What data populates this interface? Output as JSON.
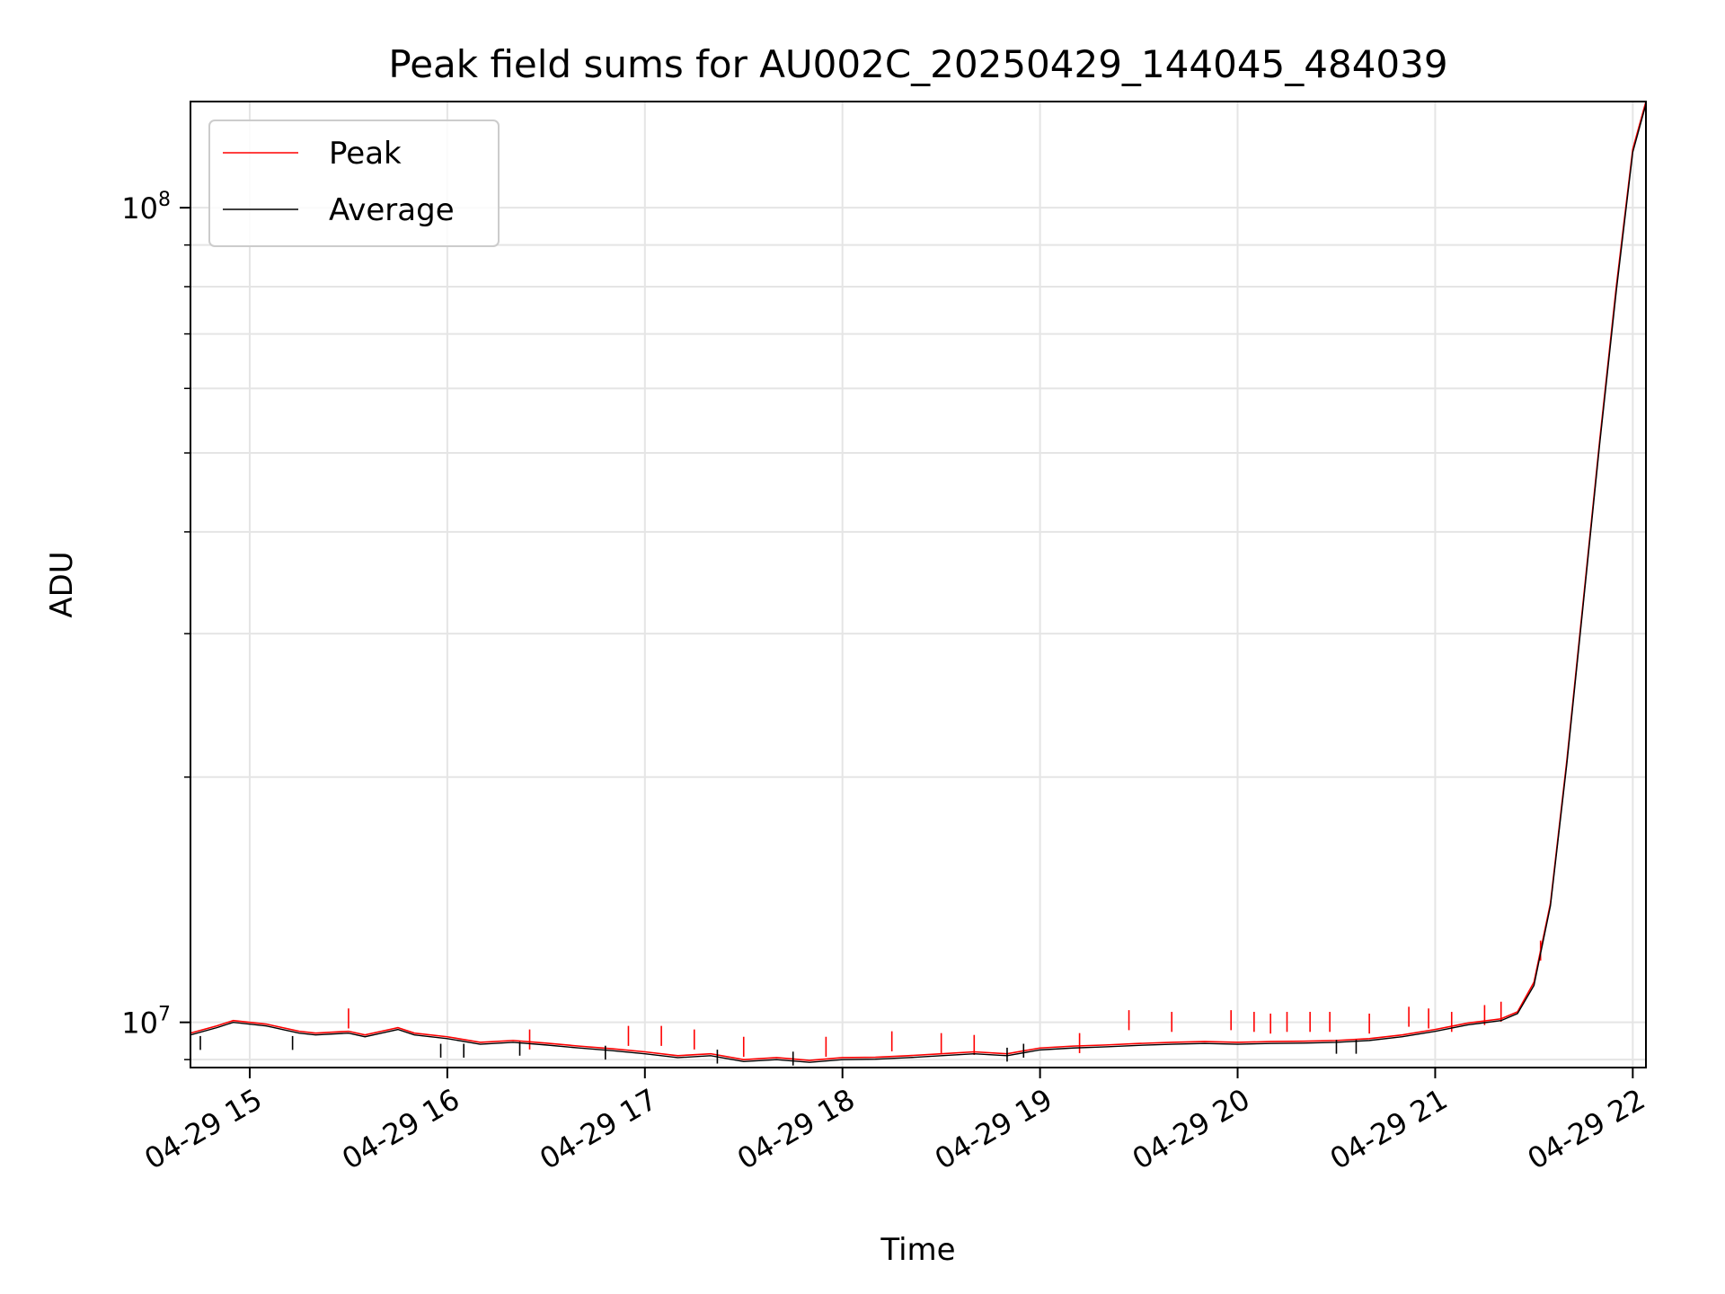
{
  "chart_data": {
    "type": "line",
    "title": "Peak field sums for AU002C_20250429_144045_484039",
    "xlabel": "Time",
    "ylabel": "ADU",
    "x_axis_type": "datetime",
    "xlim": [
      "2025-04-29T14:42:00",
      "2025-04-29T22:04:00"
    ],
    "x_ticks": [
      {
        "value": "2025-04-29T15:00:00",
        "label": "04-29 15"
      },
      {
        "value": "2025-04-29T16:00:00",
        "label": "04-29 16"
      },
      {
        "value": "2025-04-29T17:00:00",
        "label": "04-29 17"
      },
      {
        "value": "2025-04-29T18:00:00",
        "label": "04-29 18"
      },
      {
        "value": "2025-04-29T19:00:00",
        "label": "04-29 19"
      },
      {
        "value": "2025-04-29T20:00:00",
        "label": "04-29 20"
      },
      {
        "value": "2025-04-29T21:00:00",
        "label": "04-29 21"
      },
      {
        "value": "2025-04-29T22:00:00",
        "label": "04-29 22"
      }
    ],
    "y_scale": "log",
    "ylim": [
      8800000,
      135000000
    ],
    "y_major_ticks": [
      {
        "value": 10000000,
        "base": "10",
        "exp": "7"
      },
      {
        "value": 100000000,
        "base": "10",
        "exp": "8"
      }
    ],
    "y_minor_ticks": [
      9000000,
      20000000,
      30000000,
      40000000,
      50000000,
      60000000,
      70000000,
      80000000,
      90000000
    ],
    "grid": true,
    "legend_position": "upper-left",
    "colors": {
      "peak": "#ff0000",
      "average": "#000000",
      "grid": "#e5e5e5"
    },
    "series": [
      {
        "name": "Peak",
        "color": "#ff0000",
        "points": [
          [
            "2025-04-29T14:42:00",
            9700000
          ],
          [
            "2025-04-29T14:50:00",
            9900000
          ],
          [
            "2025-04-29T14:55:00",
            10050000
          ],
          [
            "2025-04-29T15:00:00",
            10000000
          ],
          [
            "2025-04-29T15:05:00",
            9950000
          ],
          [
            "2025-04-29T15:10:00",
            9850000
          ],
          [
            "2025-04-29T15:15:00",
            9750000
          ],
          [
            "2025-04-29T15:20:00",
            9700000
          ],
          [
            "2025-04-29T15:30:00",
            9750000
          ],
          [
            "2025-04-29T15:35:00",
            9650000
          ],
          [
            "2025-04-29T15:40:00",
            9750000
          ],
          [
            "2025-04-29T15:45:00",
            9850000
          ],
          [
            "2025-04-29T15:50:00",
            9700000
          ],
          [
            "2025-04-29T16:00:00",
            9600000
          ],
          [
            "2025-04-29T16:10:00",
            9450000
          ],
          [
            "2025-04-29T16:20:00",
            9500000
          ],
          [
            "2025-04-29T16:30:00",
            9430000
          ],
          [
            "2025-04-29T16:40:00",
            9350000
          ],
          [
            "2025-04-29T16:50:00",
            9280000
          ],
          [
            "2025-04-29T17:00:00",
            9200000
          ],
          [
            "2025-04-29T17:10:00",
            9100000
          ],
          [
            "2025-04-29T17:20:00",
            9150000
          ],
          [
            "2025-04-29T17:30:00",
            9000000
          ],
          [
            "2025-04-29T17:40:00",
            9050000
          ],
          [
            "2025-04-29T17:50:00",
            8980000
          ],
          [
            "2025-04-29T18:00:00",
            9050000
          ],
          [
            "2025-04-29T18:10:00",
            9060000
          ],
          [
            "2025-04-29T18:20:00",
            9100000
          ],
          [
            "2025-04-29T18:30:00",
            9150000
          ],
          [
            "2025-04-29T18:40:00",
            9200000
          ],
          [
            "2025-04-29T18:50:00",
            9150000
          ],
          [
            "2025-04-29T19:00:00",
            9300000
          ],
          [
            "2025-04-29T19:10:00",
            9350000
          ],
          [
            "2025-04-29T19:20:00",
            9380000
          ],
          [
            "2025-04-29T19:30:00",
            9420000
          ],
          [
            "2025-04-29T19:40:00",
            9450000
          ],
          [
            "2025-04-29T19:50:00",
            9470000
          ],
          [
            "2025-04-29T20:00:00",
            9450000
          ],
          [
            "2025-04-29T20:10:00",
            9470000
          ],
          [
            "2025-04-29T20:20:00",
            9480000
          ],
          [
            "2025-04-29T20:30:00",
            9500000
          ],
          [
            "2025-04-29T20:40:00",
            9550000
          ],
          [
            "2025-04-29T20:50:00",
            9650000
          ],
          [
            "2025-04-29T21:00:00",
            9800000
          ],
          [
            "2025-04-29T21:10:00",
            9980000
          ],
          [
            "2025-04-29T21:20:00",
            10100000
          ],
          [
            "2025-04-29T21:25:00",
            10300000
          ],
          [
            "2025-04-29T21:30:00",
            11200000
          ],
          [
            "2025-04-29T21:35:00",
            14000000
          ],
          [
            "2025-04-29T21:40:00",
            21000000
          ],
          [
            "2025-04-29T21:45:00",
            33000000
          ],
          [
            "2025-04-29T21:50:00",
            52000000
          ],
          [
            "2025-04-29T21:55:00",
            80000000
          ],
          [
            "2025-04-29T22:00:00",
            118000000
          ],
          [
            "2025-04-29T22:04:00",
            135000000
          ]
        ]
      },
      {
        "name": "Average",
        "color": "#000000",
        "points": [
          [
            "2025-04-29T14:42:00",
            9650000
          ],
          [
            "2025-04-29T14:50:00",
            9850000
          ],
          [
            "2025-04-29T14:55:00",
            10000000
          ],
          [
            "2025-04-29T15:00:00",
            9950000
          ],
          [
            "2025-04-29T15:05:00",
            9900000
          ],
          [
            "2025-04-29T15:10:00",
            9800000
          ],
          [
            "2025-04-29T15:15:00",
            9700000
          ],
          [
            "2025-04-29T15:20:00",
            9650000
          ],
          [
            "2025-04-29T15:30:00",
            9700000
          ],
          [
            "2025-04-29T15:35:00",
            9600000
          ],
          [
            "2025-04-29T15:40:00",
            9700000
          ],
          [
            "2025-04-29T15:45:00",
            9800000
          ],
          [
            "2025-04-29T15:50:00",
            9650000
          ],
          [
            "2025-04-29T16:00:00",
            9550000
          ],
          [
            "2025-04-29T16:10:00",
            9400000
          ],
          [
            "2025-04-29T16:20:00",
            9450000
          ],
          [
            "2025-04-29T16:30:00",
            9380000
          ],
          [
            "2025-04-29T16:40:00",
            9300000
          ],
          [
            "2025-04-29T16:50:00",
            9230000
          ],
          [
            "2025-04-29T17:00:00",
            9150000
          ],
          [
            "2025-04-29T17:10:00",
            9050000
          ],
          [
            "2025-04-29T17:20:00",
            9100000
          ],
          [
            "2025-04-29T17:30:00",
            8950000
          ],
          [
            "2025-04-29T17:40:00",
            9000000
          ],
          [
            "2025-04-29T17:50:00",
            8930000
          ],
          [
            "2025-04-29T18:00:00",
            9000000
          ],
          [
            "2025-04-29T18:10:00",
            9010000
          ],
          [
            "2025-04-29T18:20:00",
            9050000
          ],
          [
            "2025-04-29T18:30:00",
            9100000
          ],
          [
            "2025-04-29T18:40:00",
            9150000
          ],
          [
            "2025-04-29T18:50:00",
            9100000
          ],
          [
            "2025-04-29T19:00:00",
            9250000
          ],
          [
            "2025-04-29T19:10:00",
            9300000
          ],
          [
            "2025-04-29T19:20:00",
            9330000
          ],
          [
            "2025-04-29T19:30:00",
            9370000
          ],
          [
            "2025-04-29T19:40:00",
            9400000
          ],
          [
            "2025-04-29T19:50:00",
            9420000
          ],
          [
            "2025-04-29T20:00:00",
            9400000
          ],
          [
            "2025-04-29T20:10:00",
            9420000
          ],
          [
            "2025-04-29T20:20:00",
            9430000
          ],
          [
            "2025-04-29T20:30:00",
            9450000
          ],
          [
            "2025-04-29T20:40:00",
            9500000
          ],
          [
            "2025-04-29T20:50:00",
            9600000
          ],
          [
            "2025-04-29T21:00:00",
            9750000
          ],
          [
            "2025-04-29T21:10:00",
            9930000
          ],
          [
            "2025-04-29T21:20:00",
            10050000
          ],
          [
            "2025-04-29T21:25:00",
            10250000
          ],
          [
            "2025-04-29T21:30:00",
            11100000
          ],
          [
            "2025-04-29T21:35:00",
            13900000
          ],
          [
            "2025-04-29T21:40:00",
            20800000
          ],
          [
            "2025-04-29T21:45:00",
            32700000
          ],
          [
            "2025-04-29T21:50:00",
            51500000
          ],
          [
            "2025-04-29T21:55:00",
            79000000
          ],
          [
            "2025-04-29T22:00:00",
            117000000
          ],
          [
            "2025-04-29T22:04:00",
            134000000
          ]
        ]
      }
    ],
    "peak_spikes": [
      [
        "2025-04-29T15:30:00",
        10400000
      ],
      [
        "2025-04-29T16:25:00",
        9800000
      ],
      [
        "2025-04-29T16:55:00",
        9900000
      ],
      [
        "2025-04-29T17:05:00",
        9900000
      ],
      [
        "2025-04-29T17:15:00",
        9800000
      ],
      [
        "2025-04-29T17:30:00",
        9600000
      ],
      [
        "2025-04-29T17:55:00",
        9600000
      ],
      [
        "2025-04-29T18:15:00",
        9750000
      ],
      [
        "2025-04-29T18:30:00",
        9700000
      ],
      [
        "2025-04-29T18:40:00",
        9650000
      ],
      [
        "2025-04-29T19:12:00",
        9700000
      ],
      [
        "2025-04-29T19:27:00",
        10350000
      ],
      [
        "2025-04-29T19:40:00",
        10300000
      ],
      [
        "2025-04-29T19:58:00",
        10350000
      ],
      [
        "2025-04-29T20:05:00",
        10300000
      ],
      [
        "2025-04-29T20:10:00",
        10250000
      ],
      [
        "2025-04-29T20:15:00",
        10300000
      ],
      [
        "2025-04-29T20:22:00",
        10300000
      ],
      [
        "2025-04-29T20:28:00",
        10300000
      ],
      [
        "2025-04-29T20:40:00",
        10250000
      ],
      [
        "2025-04-29T20:52:00",
        10450000
      ],
      [
        "2025-04-29T20:58:00",
        10400000
      ],
      [
        "2025-04-29T21:05:00",
        10300000
      ],
      [
        "2025-04-29T21:15:00",
        10500000
      ],
      [
        "2025-04-29T21:20:00",
        10600000
      ],
      [
        "2025-04-29T21:32:00",
        12600000
      ]
    ],
    "average_dips": [
      [
        "2025-04-29T14:45:00",
        9250000
      ],
      [
        "2025-04-29T15:13:00",
        9250000
      ],
      [
        "2025-04-29T15:58:00",
        9050000
      ],
      [
        "2025-04-29T16:05:00",
        9050000
      ],
      [
        "2025-04-29T16:22:00",
        9100000
      ],
      [
        "2025-04-29T16:48:00",
        9000000
      ],
      [
        "2025-04-29T17:22:00",
        8900000
      ],
      [
        "2025-04-29T17:45:00",
        8850000
      ],
      [
        "2025-04-29T18:50:00",
        8950000
      ],
      [
        "2025-04-29T18:55:00",
        9050000
      ],
      [
        "2025-04-29T20:30:00",
        9150000
      ],
      [
        "2025-04-29T20:36:00",
        9150000
      ]
    ]
  }
}
